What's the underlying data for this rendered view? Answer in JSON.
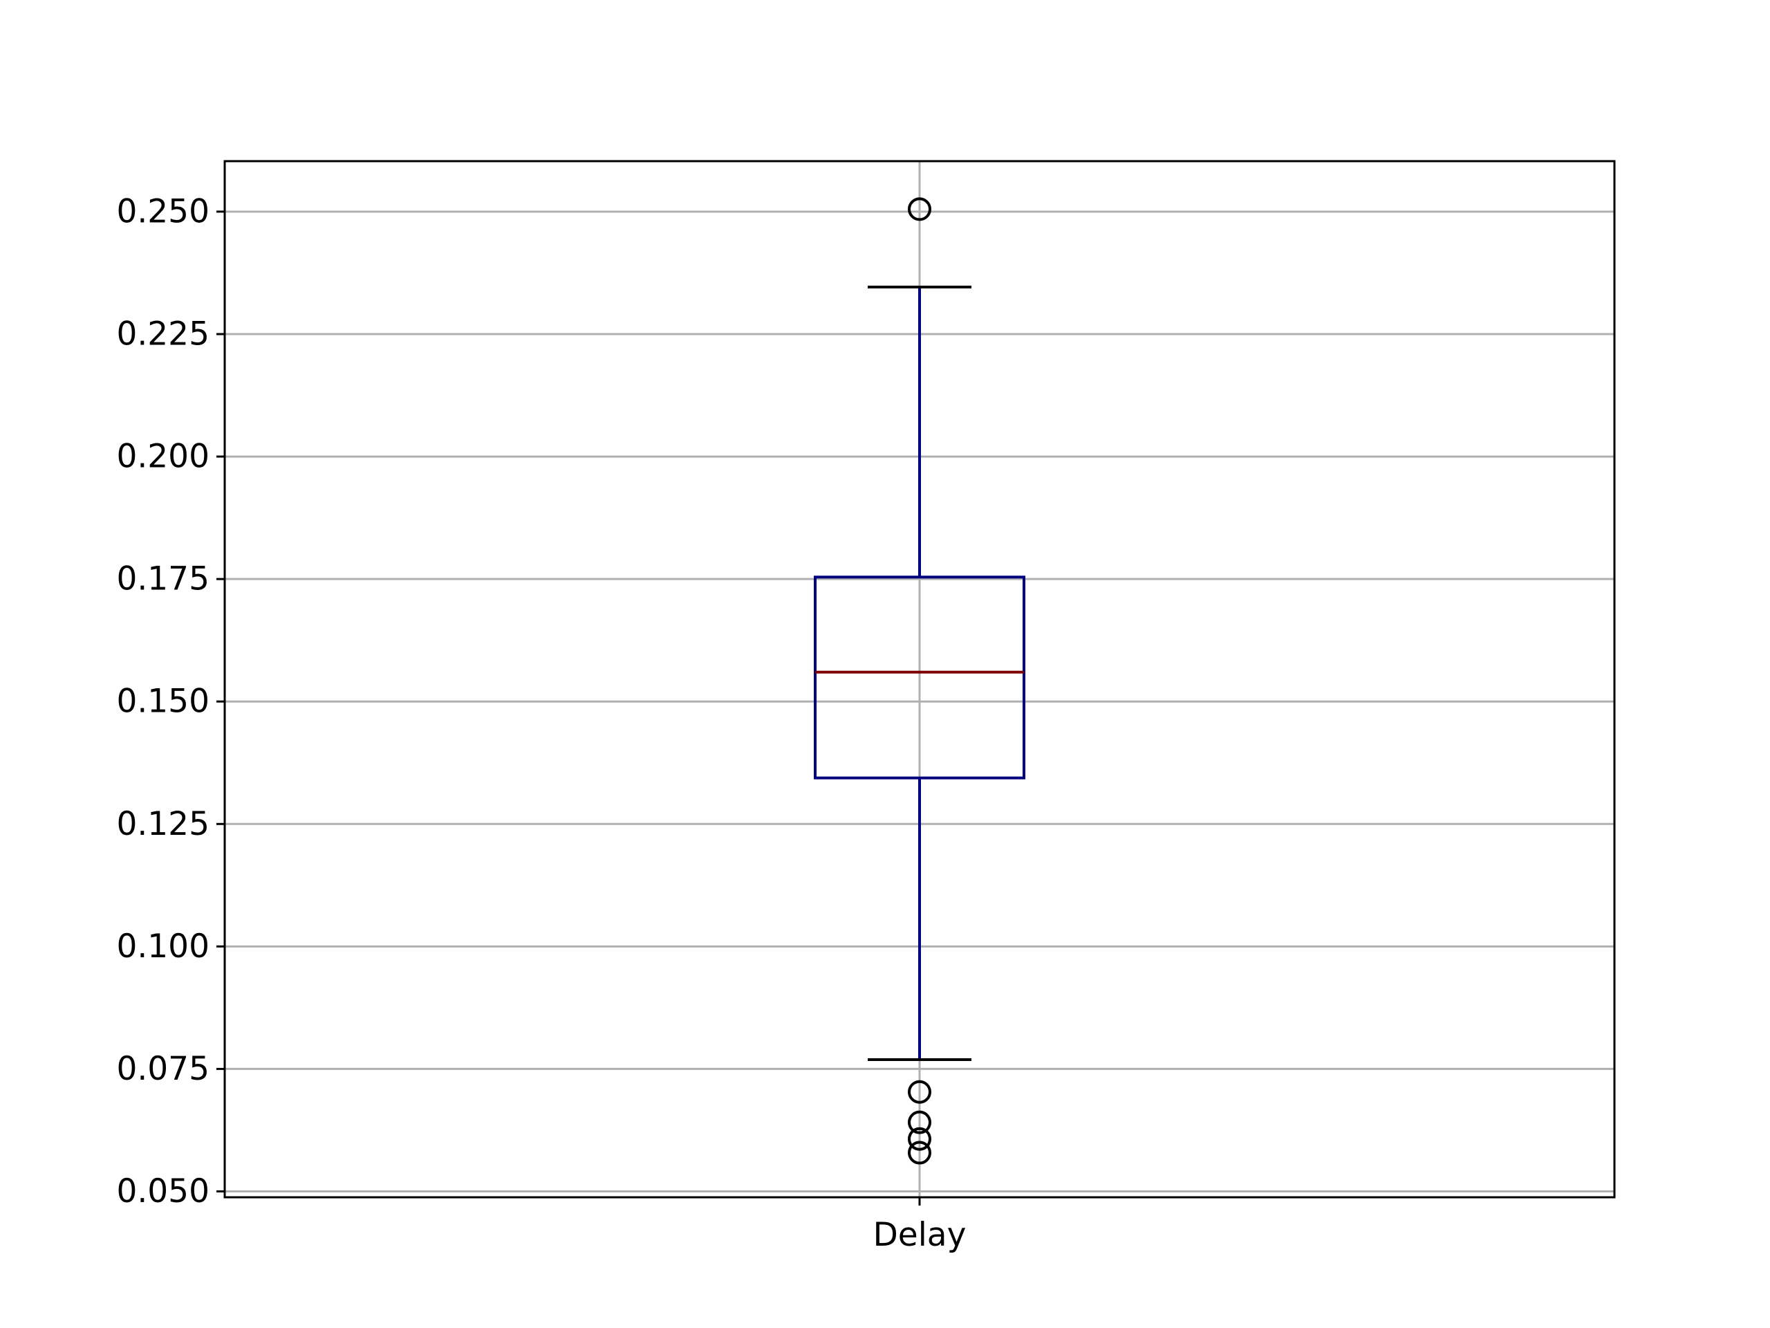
{
  "chart_data": {
    "type": "box",
    "categories": [
      "Delay"
    ],
    "boxes": [
      {
        "label": "Delay",
        "whisker_low": 0.0769,
        "q1": 0.1344,
        "median": 0.156,
        "q3": 0.1754,
        "whisker_high": 0.2346,
        "fliers": [
          0.2505,
          0.0703,
          0.0641,
          0.0607,
          0.0579
        ]
      }
    ],
    "ylim": [
      0.0488,
      0.2603
    ],
    "yticks": [
      0.05,
      0.075,
      0.1,
      0.125,
      0.15,
      0.175,
      0.2,
      0.225,
      0.25
    ],
    "ytick_labels": [
      "0.050",
      "0.075",
      "0.100",
      "0.125",
      "0.150",
      "0.175",
      "0.200",
      "0.225",
      "0.250"
    ],
    "grid": true,
    "colors": {
      "box": "#00007f",
      "median": "#7f0000",
      "caps": "#000000",
      "fliers": "#000000",
      "grid": "#b0b0b0",
      "axes": "#000000"
    }
  }
}
